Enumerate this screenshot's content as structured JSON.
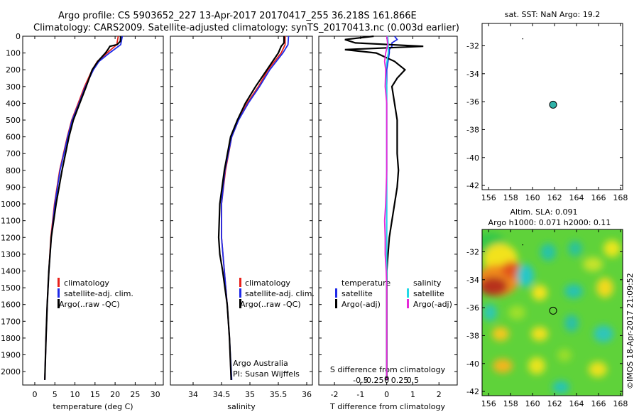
{
  "header": {
    "line1": "Argo profile: CS 5903652_227 13-Apr-2017 20170417_255 36.218S 161.866E",
    "line2": "Climatology: CARS2009. Satellite-adjusted climatology: synTS_20170413.nc (0.003d earlier)"
  },
  "chart_data": [
    {
      "type": "line",
      "name": "temperature-profile",
      "xlabel": "temperature (deg C)",
      "ylabel": "",
      "xlim": [
        -3,
        32
      ],
      "ylim": [
        2080,
        0
      ],
      "xticks": [
        0,
        5,
        10,
        15,
        20,
        25,
        30
      ],
      "yticks": [
        0,
        100,
        200,
        300,
        400,
        500,
        600,
        700,
        800,
        900,
        1000,
        1100,
        1200,
        1300,
        1400,
        1500,
        1600,
        1700,
        1800,
        1900,
        2000
      ],
      "legend": [
        "climatology",
        "satellite-adj. clim.",
        "Argo(..raw -QC)"
      ],
      "colors": {
        "climatology": "#e8201a",
        "satellite": "#1f2ae8",
        "argo": "#000000"
      },
      "series": [
        {
          "name": "climatology",
          "depth": [
            0,
            50,
            100,
            150,
            200,
            300,
            400,
            500,
            600,
            800,
            1000,
            1200,
            1400,
            1600,
            1800,
            2050
          ],
          "values": [
            20.8,
            20.4,
            18.0,
            15.6,
            14.3,
            12.4,
            10.8,
            9.2,
            8.1,
            6.2,
            4.9,
            4.0,
            3.5,
            3.1,
            2.8,
            2.5
          ]
        },
        {
          "name": "satellite",
          "depth": [
            0,
            50,
            100,
            150,
            200,
            300,
            400,
            500,
            600,
            800,
            1000,
            1200,
            1400,
            1600,
            1800,
            2050
          ],
          "values": [
            21.8,
            21.4,
            18.6,
            16.0,
            14.6,
            12.6,
            11.0,
            9.3,
            8.2,
            6.3,
            5.0,
            4.1,
            3.5,
            3.1,
            2.8,
            2.5
          ]
        },
        {
          "name": "argo",
          "depth": [
            0,
            30,
            50,
            60,
            80,
            100,
            150,
            200,
            300,
            400,
            500,
            600,
            800,
            1000,
            1200,
            1400,
            1600,
            1800,
            2050
          ],
          "values": [
            21.4,
            21.3,
            20.5,
            18.7,
            18.2,
            17.6,
            15.7,
            14.3,
            12.8,
            11.2,
            9.6,
            8.5,
            6.8,
            5.3,
            4.1,
            3.5,
            3.1,
            2.8,
            2.5
          ]
        }
      ]
    },
    {
      "type": "line",
      "name": "salinity-profile",
      "xlabel": "salinity",
      "xlim": [
        33.6,
        36.1
      ],
      "ylim": [
        2080,
        0
      ],
      "xticks": [
        34,
        34.5,
        35,
        35.5,
        36
      ],
      "legend": [
        "climatology",
        "satellite-adj. clim.",
        "Argo(..raw -QC)"
      ],
      "annotation": [
        "Argo Australia",
        "PI: Susan Wijffels"
      ],
      "series": [
        {
          "name": "climatology",
          "depth": [
            0,
            50,
            100,
            200,
            300,
            400,
            500,
            600,
            800,
            1000,
            1200,
            1400,
            1600,
            1800,
            2050
          ],
          "values": [
            35.62,
            35.62,
            35.55,
            35.32,
            35.15,
            34.95,
            34.8,
            34.68,
            34.57,
            34.5,
            34.5,
            34.55,
            34.6,
            34.64,
            34.67
          ]
        },
        {
          "name": "satellite",
          "depth": [
            0,
            50,
            100,
            200,
            300,
            400,
            500,
            600,
            800,
            1000,
            1200,
            1400,
            1600,
            1800,
            2050
          ],
          "values": [
            35.68,
            35.67,
            35.58,
            35.35,
            35.17,
            34.97,
            34.8,
            34.68,
            34.56,
            34.5,
            34.5,
            34.55,
            34.6,
            34.64,
            34.68
          ]
        },
        {
          "name": "argo",
          "depth": [
            0,
            40,
            60,
            100,
            200,
            300,
            400,
            500,
            600,
            800,
            1000,
            1200,
            1300,
            1400,
            1600,
            1800,
            2050
          ],
          "values": [
            35.6,
            35.6,
            35.55,
            35.5,
            35.3,
            35.1,
            34.92,
            34.78,
            34.66,
            34.55,
            34.47,
            34.45,
            34.47,
            34.52,
            34.6,
            34.64,
            34.67
          ]
        }
      ]
    },
    {
      "type": "line",
      "name": "difference-profile",
      "xlabel": "T difference from climatology",
      "xlabel_top": "S difference from climatology",
      "xlim": [
        -2.6,
        2.7
      ],
      "ylim": [
        2080,
        0
      ],
      "xticks": [
        -2,
        -1,
        0,
        1,
        2
      ],
      "top_ticks": [
        -0.5,
        -0.25,
        0,
        0.25,
        0.5
      ],
      "legend_title_t": "temperature",
      "legend_title_s": "salinity",
      "legend": [
        "satellite",
        "Argo(-adj)",
        "satellite",
        "Argo(-adj)"
      ],
      "series": [
        {
          "name": "temperature satellite",
          "depth": [
            0,
            20,
            40,
            60,
            80,
            100,
            150,
            200,
            300,
            400,
            500,
            600,
            800,
            1000,
            1500,
            2050
          ],
          "values": [
            0.3,
            0.4,
            0.2,
            0.2,
            0.1,
            0.1,
            0.05,
            0.0,
            0.0,
            0.0,
            0.0,
            0.0,
            0.0,
            0.0,
            0.0,
            0.0
          ]
        },
        {
          "name": "temperature Argo(-adj)",
          "depth": [
            0,
            20,
            40,
            60,
            80,
            100,
            150,
            200,
            250,
            300,
            400,
            500,
            600,
            700,
            800,
            900,
            1000,
            1200,
            1400,
            1600,
            2050
          ],
          "values": [
            -0.5,
            -1.6,
            -1.2,
            1.4,
            -1.6,
            -0.4,
            0.3,
            0.7,
            0.4,
            0.2,
            0.3,
            0.4,
            0.4,
            0.4,
            0.45,
            0.4,
            0.3,
            0.1,
            0.0,
            0.0,
            0.0
          ]
        },
        {
          "name": "salinity satellite",
          "depth": [
            0,
            50,
            100,
            200,
            300,
            400,
            500,
            800,
            1200,
            1600,
            2050
          ],
          "values": [
            0.02,
            0.03,
            0.03,
            -0.02,
            0.0,
            0.0,
            0.0,
            0.0,
            0.0,
            0.0,
            0.0
          ]
        },
        {
          "name": "salinity Argo(-adj)",
          "depth": [
            0,
            50,
            100,
            150,
            200,
            300,
            400,
            500,
            800,
            1000,
            1100,
            1200,
            1300,
            1400,
            1500,
            1600,
            2050
          ],
          "values": [
            0.0,
            0.02,
            -0.02,
            -0.04,
            -0.02,
            -0.03,
            0.0,
            0.0,
            0.0,
            -0.02,
            -0.04,
            -0.03,
            -0.03,
            -0.01,
            0.0,
            0.0,
            0.0
          ]
        }
      ]
    },
    {
      "type": "scatter",
      "name": "sst-map",
      "title": "sat. SST: NaN Argo: 19.2",
      "xlim": [
        155.4,
        168.2
      ],
      "ylim": [
        -42.3,
        -30.4
      ],
      "xticks": [
        156,
        158,
        160,
        162,
        164,
        166,
        168
      ],
      "yticks": [
        -32,
        -34,
        -36,
        -38,
        -40,
        -42
      ],
      "points": [
        {
          "x": 161.866,
          "y": -36.218
        }
      ],
      "marker_color": "#2fb2a8"
    },
    {
      "type": "heatmap",
      "name": "sla-map",
      "title": "Altim. SLA: 0.091",
      "subtitle": "Argo h1000: 0.071 h2000: 0.11",
      "xlim": [
        155.4,
        168.2
      ],
      "ylim": [
        -42.3,
        -30.4
      ],
      "xticks": [
        156,
        158,
        160,
        162,
        164,
        166,
        168
      ],
      "yticks": [
        -32,
        -34,
        -36,
        -38,
        -40,
        -42
      ],
      "points": [
        {
          "x": 161.866,
          "y": -36.218
        }
      ]
    }
  ],
  "credit": "©IMOS 18-Apr-2017 21:09:52"
}
